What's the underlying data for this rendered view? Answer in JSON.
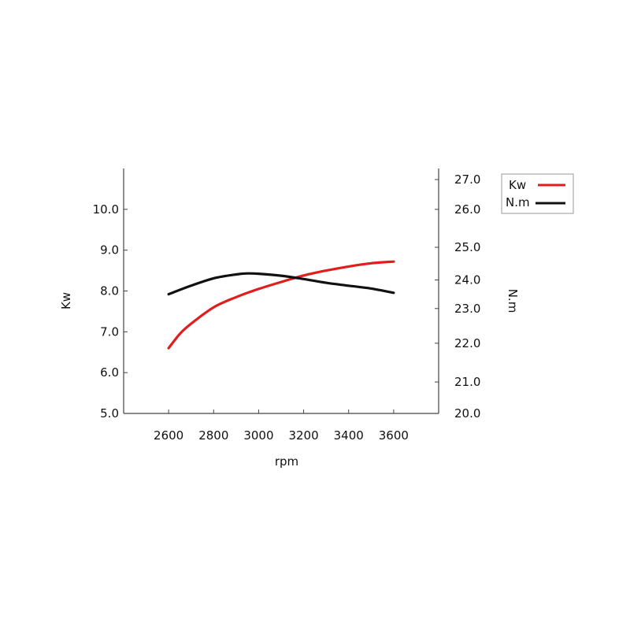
{
  "chart_data": {
    "type": "line",
    "title": "",
    "xlabel": "rpm",
    "ylabel_left": "Kw",
    "ylabel_right": "N.m",
    "x_ticks": [
      2600,
      2800,
      3000,
      3200,
      3400,
      3600
    ],
    "xlim": [
      2400,
      3800
    ],
    "y_left_ticks": [
      "5.0",
      "6.0",
      "7.0",
      "8.0",
      "9.0",
      "10.0"
    ],
    "ylim_left": [
      5.0,
      11.0
    ],
    "y_right_ticks": [
      "20.0",
      "21.0",
      "22.0",
      "23.0",
      "24.0",
      "25.0",
      "26.0",
      "27.0"
    ],
    "y_right_tick_kw": [
      5.0,
      5.77,
      6.72,
      7.57,
      8.27,
      9.07,
      10.0,
      10.73
    ],
    "grid": false,
    "legend": {
      "placement": "top-right",
      "entries": [
        "Kw",
        "N.m"
      ]
    },
    "series": [
      {
        "name": "Kw",
        "axis": "left",
        "color": "#e01e1e",
        "x": [
          2600,
          2650,
          2700,
          2800,
          2900,
          3000,
          3100,
          3200,
          3300,
          3400,
          3500,
          3600
        ],
        "y": [
          6.6,
          6.95,
          7.2,
          7.6,
          7.85,
          8.05,
          8.22,
          8.38,
          8.5,
          8.6,
          8.68,
          8.72
        ]
      },
      {
        "name": "N.m",
        "axis": "right",
        "color": "#111111",
        "x": [
          2600,
          2700,
          2800,
          2900,
          2950,
          3000,
          3100,
          3200,
          3300,
          3400,
          3500,
          3600
        ],
        "y": [
          23.5,
          23.8,
          24.05,
          24.17,
          24.2,
          24.19,
          24.13,
          24.03,
          23.9,
          23.8,
          23.7,
          23.55
        ]
      }
    ]
  }
}
